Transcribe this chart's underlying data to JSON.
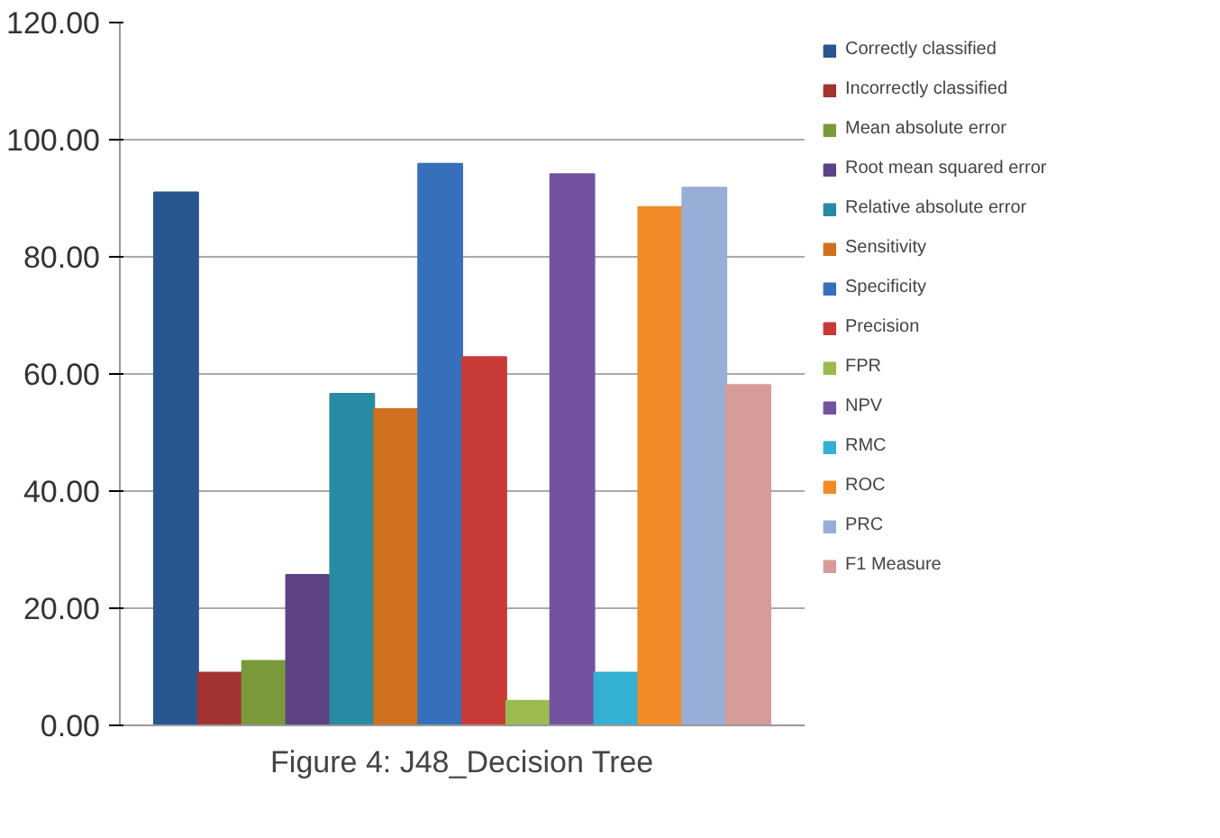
{
  "chart_data": {
    "type": "bar",
    "xlabel": "Figure 4: J48_Decision Tree",
    "categories": [
      null
    ],
    "ylim": [
      0,
      120
    ],
    "yticks": [
      {
        "value": 0,
        "label": "0.00"
      },
      {
        "value": 20,
        "label": "20.00"
      },
      {
        "value": 40,
        "label": "40.00"
      },
      {
        "value": 60,
        "label": "60.00"
      },
      {
        "value": 80,
        "label": "80.00"
      },
      {
        "value": 100,
        "label": "100.00"
      },
      {
        "value": 120,
        "label": "120.00"
      }
    ],
    "grid": "y",
    "legend": "right",
    "series": [
      {
        "name": "Correctly classified",
        "color": "#2a5690",
        "values": [
          91
        ]
      },
      {
        "name": "Incorrectly classified",
        "color": "#a33331",
        "values": [
          9
        ]
      },
      {
        "name": "Mean absolute error",
        "color": "#7a9a3a",
        "values": [
          11
        ]
      },
      {
        "name": "Root mean squared error",
        "color": "#5d4384",
        "values": [
          25.7
        ]
      },
      {
        "name": "Relative absolute error",
        "color": "#2a8aa4",
        "values": [
          56.6
        ]
      },
      {
        "name": "Sensitivity",
        "color": "#d0701e",
        "values": [
          54
        ]
      },
      {
        "name": "Specificity",
        "color": "#3670bb",
        "values": [
          95.9
        ]
      },
      {
        "name": "Precision",
        "color": "#c83a36",
        "values": [
          62.9
        ]
      },
      {
        "name": "FPR",
        "color": "#9bbb50",
        "values": [
          4.2
        ]
      },
      {
        "name": "NPV",
        "color": "#7352a0",
        "values": [
          94.1
        ]
      },
      {
        "name": "RMC",
        "color": "#33b0d4",
        "values": [
          9
        ]
      },
      {
        "name": "ROC",
        "color": "#f28a28",
        "values": [
          88.5
        ]
      },
      {
        "name": "PRC",
        "color": "#98aed6",
        "values": [
          91.8
        ]
      },
      {
        "name": "F1 Measure",
        "color": "#d69c9a",
        "values": [
          58.1
        ]
      }
    ]
  }
}
